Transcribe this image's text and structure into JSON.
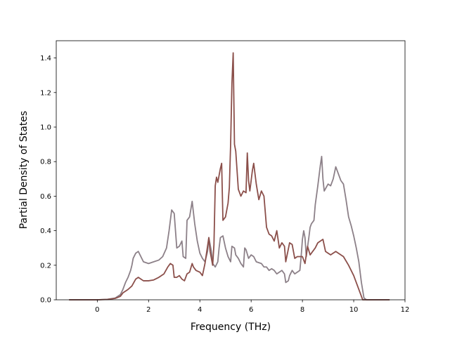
{
  "chart_data": {
    "type": "line",
    "title": "",
    "xlabel": "Frequency (THz)",
    "ylabel": "Partial Density of States",
    "xlim": [
      -1.6,
      12
    ],
    "ylim": [
      0,
      1.5
    ],
    "xticks": [
      0,
      2,
      4,
      6,
      8,
      10,
      12
    ],
    "yticks": [
      0.0,
      0.2,
      0.4,
      0.6,
      0.8,
      1.0,
      1.2,
      1.4
    ],
    "xtick_labels": [
      "0",
      "2",
      "4",
      "6",
      "8",
      "10",
      "12"
    ],
    "ytick_labels": [
      "0.0",
      "0.2",
      "0.4",
      "0.6",
      "0.8",
      "1.0",
      "1.2",
      "1.4"
    ],
    "grid": false,
    "legend": "none",
    "series": [
      {
        "color": "#8c8088",
        "points": [
          [
            -1.1,
            0
          ],
          [
            0,
            0
          ],
          [
            0.4,
            0.003
          ],
          [
            0.7,
            0.01
          ],
          [
            0.9,
            0.03
          ],
          [
            1.0,
            0.06
          ],
          [
            1.1,
            0.1
          ],
          [
            1.2,
            0.13
          ],
          [
            1.3,
            0.17
          ],
          [
            1.35,
            0.2
          ],
          [
            1.4,
            0.24
          ],
          [
            1.5,
            0.27
          ],
          [
            1.6,
            0.28
          ],
          [
            1.7,
            0.25
          ],
          [
            1.8,
            0.22
          ],
          [
            2.0,
            0.21
          ],
          [
            2.2,
            0.22
          ],
          [
            2.4,
            0.23
          ],
          [
            2.55,
            0.25
          ],
          [
            2.7,
            0.3
          ],
          [
            2.8,
            0.4
          ],
          [
            2.9,
            0.52
          ],
          [
            3.0,
            0.5
          ],
          [
            3.1,
            0.3
          ],
          [
            3.2,
            0.31
          ],
          [
            3.3,
            0.34
          ],
          [
            3.35,
            0.25
          ],
          [
            3.45,
            0.24
          ],
          [
            3.5,
            0.46
          ],
          [
            3.6,
            0.48
          ],
          [
            3.7,
            0.57
          ],
          [
            3.8,
            0.44
          ],
          [
            3.9,
            0.34
          ],
          [
            4.0,
            0.27
          ],
          [
            4.1,
            0.24
          ],
          [
            4.2,
            0.22
          ],
          [
            4.3,
            0.28
          ],
          [
            4.35,
            0.36
          ],
          [
            4.45,
            0.28
          ],
          [
            4.5,
            0.21
          ],
          [
            4.6,
            0.19
          ],
          [
            4.7,
            0.22
          ],
          [
            4.75,
            0.3
          ],
          [
            4.8,
            0.36
          ],
          [
            4.9,
            0.37
          ],
          [
            5.0,
            0.3
          ],
          [
            5.1,
            0.25
          ],
          [
            5.2,
            0.22
          ],
          [
            5.25,
            0.31
          ],
          [
            5.35,
            0.3
          ],
          [
            5.4,
            0.26
          ],
          [
            5.5,
            0.24
          ],
          [
            5.6,
            0.21
          ],
          [
            5.7,
            0.19
          ],
          [
            5.75,
            0.3
          ],
          [
            5.8,
            0.29
          ],
          [
            5.9,
            0.24
          ],
          [
            6.0,
            0.26
          ],
          [
            6.1,
            0.25
          ],
          [
            6.2,
            0.22
          ],
          [
            6.4,
            0.21
          ],
          [
            6.5,
            0.19
          ],
          [
            6.6,
            0.19
          ],
          [
            6.7,
            0.17
          ],
          [
            6.8,
            0.18
          ],
          [
            6.9,
            0.17
          ],
          [
            7.0,
            0.15
          ],
          [
            7.1,
            0.16
          ],
          [
            7.2,
            0.17
          ],
          [
            7.3,
            0.15
          ],
          [
            7.35,
            0.1
          ],
          [
            7.45,
            0.11
          ],
          [
            7.5,
            0.14
          ],
          [
            7.6,
            0.17
          ],
          [
            7.7,
            0.15
          ],
          [
            7.8,
            0.16
          ],
          [
            7.9,
            0.17
          ],
          [
            7.95,
            0.25
          ],
          [
            8.0,
            0.35
          ],
          [
            8.05,
            0.4
          ],
          [
            8.1,
            0.36
          ],
          [
            8.15,
            0.25
          ],
          [
            8.25,
            0.36
          ],
          [
            8.3,
            0.42
          ],
          [
            8.35,
            0.44
          ],
          [
            8.45,
            0.46
          ],
          [
            8.5,
            0.55
          ],
          [
            8.6,
            0.66
          ],
          [
            8.7,
            0.78
          ],
          [
            8.75,
            0.83
          ],
          [
            8.8,
            0.7
          ],
          [
            8.85,
            0.63
          ],
          [
            9.0,
            0.67
          ],
          [
            9.1,
            0.66
          ],
          [
            9.2,
            0.7
          ],
          [
            9.3,
            0.77
          ],
          [
            9.4,
            0.73
          ],
          [
            9.5,
            0.69
          ],
          [
            9.6,
            0.67
          ],
          [
            9.7,
            0.58
          ],
          [
            9.8,
            0.48
          ],
          [
            9.9,
            0.43
          ],
          [
            10.0,
            0.37
          ],
          [
            10.1,
            0.3
          ],
          [
            10.2,
            0.22
          ],
          [
            10.3,
            0.1
          ],
          [
            10.4,
            0.01
          ],
          [
            10.5,
            0
          ],
          [
            11.4,
            0
          ]
        ]
      },
      {
        "color": "#8b4f4a",
        "points": [
          [
            -1.1,
            0
          ],
          [
            0,
            0
          ],
          [
            0.4,
            0.002
          ],
          [
            0.7,
            0.008
          ],
          [
            0.9,
            0.02
          ],
          [
            1.0,
            0.04
          ],
          [
            1.2,
            0.06
          ],
          [
            1.35,
            0.08
          ],
          [
            1.5,
            0.12
          ],
          [
            1.6,
            0.13
          ],
          [
            1.7,
            0.12
          ],
          [
            1.8,
            0.11
          ],
          [
            2.0,
            0.11
          ],
          [
            2.2,
            0.115
          ],
          [
            2.4,
            0.13
          ],
          [
            2.6,
            0.15
          ],
          [
            2.75,
            0.19
          ],
          [
            2.85,
            0.21
          ],
          [
            2.95,
            0.2
          ],
          [
            3.0,
            0.13
          ],
          [
            3.1,
            0.13
          ],
          [
            3.2,
            0.14
          ],
          [
            3.3,
            0.12
          ],
          [
            3.4,
            0.11
          ],
          [
            3.5,
            0.15
          ],
          [
            3.6,
            0.16
          ],
          [
            3.7,
            0.21
          ],
          [
            3.75,
            0.19
          ],
          [
            3.85,
            0.17
          ],
          [
            4.0,
            0.16
          ],
          [
            4.1,
            0.14
          ],
          [
            4.2,
            0.21
          ],
          [
            4.3,
            0.31
          ],
          [
            4.35,
            0.36
          ],
          [
            4.4,
            0.28
          ],
          [
            4.5,
            0.2
          ],
          [
            4.55,
            0.32
          ],
          [
            4.6,
            0.66
          ],
          [
            4.65,
            0.71
          ],
          [
            4.7,
            0.68
          ],
          [
            4.75,
            0.72
          ],
          [
            4.8,
            0.76
          ],
          [
            4.85,
            0.79
          ],
          [
            4.9,
            0.46
          ],
          [
            5.0,
            0.48
          ],
          [
            5.1,
            0.56
          ],
          [
            5.15,
            0.65
          ],
          [
            5.2,
            0.9
          ],
          [
            5.25,
            1.25
          ],
          [
            5.3,
            1.43
          ],
          [
            5.35,
            0.9
          ],
          [
            5.4,
            0.86
          ],
          [
            5.45,
            0.75
          ],
          [
            5.5,
            0.64
          ],
          [
            5.6,
            0.6
          ],
          [
            5.7,
            0.63
          ],
          [
            5.8,
            0.62
          ],
          [
            5.85,
            0.85
          ],
          [
            5.9,
            0.69
          ],
          [
            5.95,
            0.63
          ],
          [
            6.05,
            0.75
          ],
          [
            6.1,
            0.79
          ],
          [
            6.2,
            0.67
          ],
          [
            6.3,
            0.58
          ],
          [
            6.4,
            0.63
          ],
          [
            6.5,
            0.6
          ],
          [
            6.6,
            0.42
          ],
          [
            6.7,
            0.38
          ],
          [
            6.8,
            0.37
          ],
          [
            6.9,
            0.34
          ],
          [
            7.0,
            0.4
          ],
          [
            7.1,
            0.3
          ],
          [
            7.2,
            0.33
          ],
          [
            7.3,
            0.31
          ],
          [
            7.35,
            0.22
          ],
          [
            7.5,
            0.33
          ],
          [
            7.6,
            0.32
          ],
          [
            7.7,
            0.24
          ],
          [
            7.8,
            0.25
          ],
          [
            7.9,
            0.25
          ],
          [
            8.0,
            0.25
          ],
          [
            8.1,
            0.21
          ],
          [
            8.2,
            0.31
          ],
          [
            8.3,
            0.26
          ],
          [
            8.5,
            0.3
          ],
          [
            8.6,
            0.33
          ],
          [
            8.7,
            0.34
          ],
          [
            8.8,
            0.35
          ],
          [
            8.9,
            0.28
          ],
          [
            9.0,
            0.27
          ],
          [
            9.1,
            0.26
          ],
          [
            9.3,
            0.28
          ],
          [
            9.4,
            0.27
          ],
          [
            9.6,
            0.25
          ],
          [
            9.8,
            0.2
          ],
          [
            10.0,
            0.14
          ],
          [
            10.2,
            0.06
          ],
          [
            10.3,
            0.02
          ],
          [
            10.35,
            0
          ],
          [
            11.4,
            0
          ]
        ]
      }
    ]
  }
}
